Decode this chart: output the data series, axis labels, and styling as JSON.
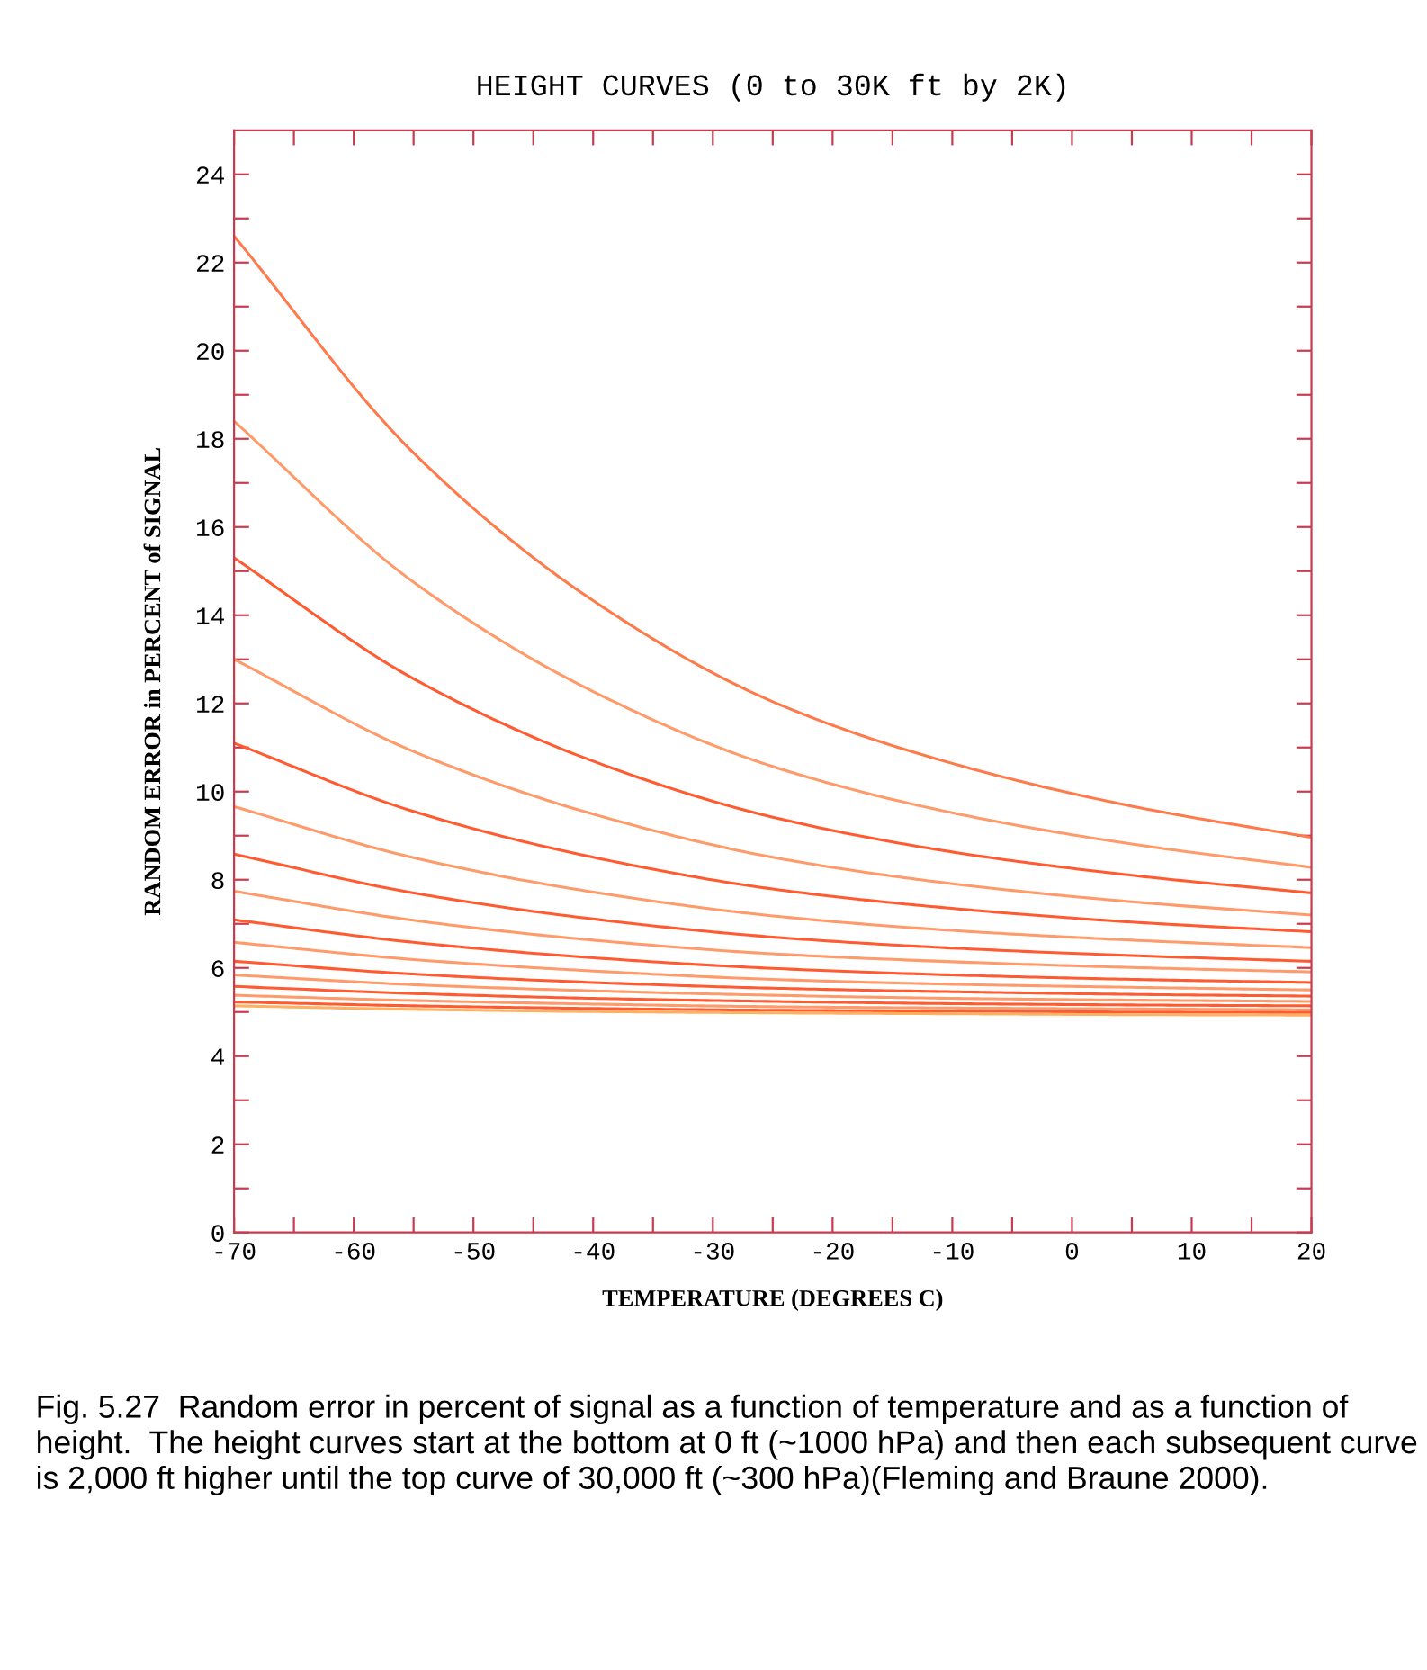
{
  "chart_data": {
    "type": "line",
    "title": "HEIGHT CURVES (0 to 30K ft by 2K)",
    "xlabel": "TEMPERATURE (DEGREES C)",
    "ylabel": "RANDOM ERROR in PERCENT of SIGNAL",
    "x": [
      -70,
      -55,
      -40,
      -25,
      -10,
      5,
      20
    ],
    "series": [
      {
        "color": "#ff7a4a",
        "values": [
          22.6,
          17.68,
          14.33,
          12.04,
          10.64,
          9.67,
          8.96
        ]
      },
      {
        "color": "#ff9a6a",
        "values": [
          18.4,
          14.75,
          12.27,
          10.57,
          9.52,
          8.81,
          8.28
        ]
      },
      {
        "color": "#ff5a30",
        "values": [
          15.3,
          12.56,
          10.69,
          9.42,
          8.63,
          8.1,
          7.7
        ]
      },
      {
        "color": "#ff9a6a",
        "values": [
          13.0,
          10.91,
          9.49,
          8.51,
          7.91,
          7.5,
          7.2
        ]
      },
      {
        "color": "#ff5a30",
        "values": [
          11.1,
          9.55,
          8.51,
          7.79,
          7.35,
          7.04,
          6.82
        ]
      },
      {
        "color": "#ff9a6a",
        "values": [
          9.66,
          8.5,
          7.72,
          7.18,
          6.85,
          6.63,
          6.46
        ]
      },
      {
        "color": "#ff5a30",
        "values": [
          8.58,
          7.7,
          7.11,
          6.7,
          6.45,
          6.28,
          6.15
        ]
      },
      {
        "color": "#ff9a6a",
        "values": [
          7.74,
          7.08,
          6.63,
          6.32,
          6.14,
          6.01,
          5.91
        ]
      },
      {
        "color": "#ff5a30",
        "values": [
          7.09,
          6.58,
          6.23,
          5.99,
          5.84,
          5.74,
          5.67
        ]
      },
      {
        "color": "#ff9a6a",
        "values": [
          6.58,
          6.19,
          5.93,
          5.74,
          5.63,
          5.56,
          5.5
        ]
      },
      {
        "color": "#ff5a30",
        "values": [
          6.15,
          5.86,
          5.67,
          5.54,
          5.46,
          5.4,
          5.36
        ]
      },
      {
        "color": "#ff9a6a",
        "values": [
          5.84,
          5.62,
          5.48,
          5.38,
          5.31,
          5.27,
          5.24
        ]
      },
      {
        "color": "#ff5a30",
        "values": [
          5.58,
          5.42,
          5.31,
          5.24,
          5.19,
          5.16,
          5.14
        ]
      },
      {
        "color": "#ff9a6a",
        "values": [
          5.38,
          5.26,
          5.18,
          5.12,
          5.09,
          5.07,
          5.05
        ]
      },
      {
        "color": "#ff5a30",
        "values": [
          5.23,
          5.14,
          5.08,
          5.04,
          5.02,
          5.0,
          4.99
        ]
      },
      {
        "color": "#ffb060",
        "values": [
          5.14,
          5.06,
          5.01,
          4.98,
          4.96,
          4.94,
          4.93
        ]
      }
    ],
    "xlim": [
      -70,
      20
    ],
    "ylim": [
      0,
      25
    ],
    "xticks": [
      -70,
      {
        "value": -65,
        "label": null
      },
      -60,
      {
        "value": -55,
        "label": null
      },
      -50,
      {
        "value": -45,
        "label": null
      },
      -40,
      {
        "value": -35,
        "label": null
      },
      -30,
      {
        "value": -25,
        "label": null
      },
      -20,
      {
        "value": -15,
        "label": null
      },
      -10,
      {
        "value": -5,
        "label": null
      },
      0,
      {
        "value": 5,
        "label": null
      },
      10,
      {
        "value": 15,
        "label": null
      },
      20
    ],
    "yticks": [
      0,
      {
        "value": 1,
        "label": null
      },
      2,
      {
        "value": 3,
        "label": null
      },
      4,
      {
        "value": 5,
        "label": null
      },
      6,
      {
        "value": 7,
        "label": null
      },
      8,
      {
        "value": 9,
        "label": null
      },
      10,
      {
        "value": 11,
        "label": null
      },
      12,
      {
        "value": 13,
        "label": null
      },
      14,
      {
        "value": 15,
        "label": null
      },
      16,
      {
        "value": 17,
        "label": null
      },
      18,
      {
        "value": 19,
        "label": null
      },
      20,
      {
        "value": 21,
        "label": null
      },
      22,
      {
        "value": 23,
        "label": null
      },
      24
    ],
    "grid": false,
    "legend": false,
    "marker": "none",
    "line_style": "solid",
    "annotations": [
      "Fig. 5.27  Random error in percent of signal as a function of temperature and as a function of height.  The height curves start at the bottom at 0 ft (~1000 hPa) and then each subsequent curve is 2,000 ft higher until the top curve of 30,000 ft (~300 hPa)(Fleming and Braune 2000)."
    ]
  }
}
